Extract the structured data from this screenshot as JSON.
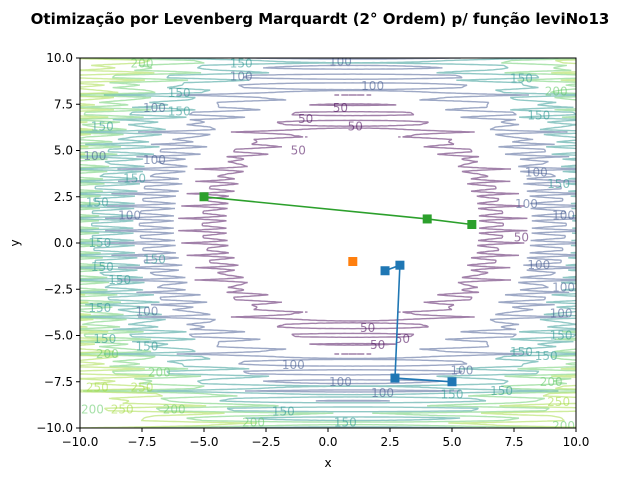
{
  "chart_data": {
    "type": "contour+line",
    "title": "Otimização por Levenberg Marquardt (2° Ordem) p/ função leviNo13",
    "xlabel": "x",
    "ylabel": "y",
    "xlim": [
      -10,
      10
    ],
    "ylim": [
      -10,
      10
    ],
    "xticks": [
      -10.0,
      -7.5,
      -5.0,
      -2.5,
      0.0,
      2.5,
      5.0,
      7.5,
      10.0
    ],
    "xtick_labels": [
      "−10.0",
      "−7.5",
      "−5.0",
      "−2.5",
      "0.0",
      "2.5",
      "5.0",
      "7.5",
      "10.0"
    ],
    "yticks": [
      -10.0,
      -7.5,
      -5.0,
      -2.5,
      0.0,
      2.5,
      5.0,
      7.5,
      10.0
    ],
    "ytick_labels": [
      "−10.0",
      "−7.5",
      "−5.0",
      "−2.5",
      "0.0",
      "2.5",
      "5.0",
      "7.5",
      "10.0"
    ],
    "grid": false,
    "contour": {
      "colormap": "viridis",
      "alpha": 0.5,
      "levels": [
        50,
        100,
        150,
        200,
        250
      ],
      "level_colors": [
        "#440154",
        "#3b528b",
        "#21918c",
        "#5ec962",
        "#a0da39"
      ],
      "labels": [
        {
          "x": 0.5,
          "y": 9.8,
          "text": "100"
        },
        {
          "x": -3.5,
          "y": 9.7,
          "text": "150"
        },
        {
          "x": -7.5,
          "y": 9.7,
          "text": "200"
        },
        {
          "x": -3.5,
          "y": 9.0,
          "text": "100"
        },
        {
          "x": 1.8,
          "y": 8.5,
          "text": "100"
        },
        {
          "x": 0.5,
          "y": 7.3,
          "text": "50"
        },
        {
          "x": -0.9,
          "y": 6.7,
          "text": "50"
        },
        {
          "x": 1.1,
          "y": 6.3,
          "text": "50"
        },
        {
          "x": 7.8,
          "y": 8.9,
          "text": "150"
        },
        {
          "x": 9.2,
          "y": 8.2,
          "text": "200"
        },
        {
          "x": 8.5,
          "y": 6.9,
          "text": "150"
        },
        {
          "x": -6.0,
          "y": 8.1,
          "text": "150"
        },
        {
          "x": -7.0,
          "y": 7.3,
          "text": "100"
        },
        {
          "x": -9.1,
          "y": 6.3,
          "text": "150"
        },
        {
          "x": -9.4,
          "y": 4.7,
          "text": "100"
        },
        {
          "x": -7.0,
          "y": 4.5,
          "text": "100"
        },
        {
          "x": -7.8,
          "y": 3.5,
          "text": "150"
        },
        {
          "x": -9.3,
          "y": 2.2,
          "text": "150"
        },
        {
          "x": -8.0,
          "y": 1.5,
          "text": "100"
        },
        {
          "x": -9.2,
          "y": 0.0,
          "text": "150"
        },
        {
          "x": -9.1,
          "y": -1.3,
          "text": "150"
        },
        {
          "x": -7.0,
          "y": -0.9,
          "text": "150"
        },
        {
          "x": -8.4,
          "y": -2.0,
          "text": "150"
        },
        {
          "x": -9.2,
          "y": -3.5,
          "text": "150"
        },
        {
          "x": -7.3,
          "y": -3.7,
          "text": "100"
        },
        {
          "x": -9.0,
          "y": -5.2,
          "text": "150"
        },
        {
          "x": -7.3,
          "y": -5.6,
          "text": "150"
        },
        {
          "x": -8.9,
          "y": -6.0,
          "text": "200"
        },
        {
          "x": -6.8,
          "y": -7.0,
          "text": "200"
        },
        {
          "x": -9.3,
          "y": -7.8,
          "text": "250"
        },
        {
          "x": -7.5,
          "y": -7.8,
          "text": "250"
        },
        {
          "x": -6.2,
          "y": -9.0,
          "text": "200"
        },
        {
          "x": -8.3,
          "y": -9.0,
          "text": "250"
        },
        {
          "x": -9.5,
          "y": -9.0,
          "text": "200"
        },
        {
          "x": 8.4,
          "y": 3.8,
          "text": "100"
        },
        {
          "x": 9.3,
          "y": 3.2,
          "text": "150"
        },
        {
          "x": 9.5,
          "y": 1.5,
          "text": "100"
        },
        {
          "x": 8.0,
          "y": 2.1,
          "text": "100"
        },
        {
          "x": 7.8,
          "y": 0.3,
          "text": "50"
        },
        {
          "x": 8.5,
          "y": -1.2,
          "text": "100"
        },
        {
          "x": 9.5,
          "y": -2.4,
          "text": "100"
        },
        {
          "x": 9.4,
          "y": -3.8,
          "text": "100"
        },
        {
          "x": 9.4,
          "y": -5.0,
          "text": "150"
        },
        {
          "x": 7.8,
          "y": -5.9,
          "text": "150"
        },
        {
          "x": 8.8,
          "y": -6.1,
          "text": "150"
        },
        {
          "x": 9.0,
          "y": -7.5,
          "text": "200"
        },
        {
          "x": 7.0,
          "y": -8.0,
          "text": "150"
        },
        {
          "x": 9.3,
          "y": -8.6,
          "text": "250"
        },
        {
          "x": 9.5,
          "y": -9.9,
          "text": "200"
        },
        {
          "x": 1.6,
          "y": -4.6,
          "text": "50"
        },
        {
          "x": 3.0,
          "y": -5.2,
          "text": "50"
        },
        {
          "x": 2.0,
          "y": -5.5,
          "text": "50"
        },
        {
          "x": -1.4,
          "y": -6.6,
          "text": "100"
        },
        {
          "x": 0.5,
          "y": -7.5,
          "text": "100"
        },
        {
          "x": 2.2,
          "y": -8.1,
          "text": "100"
        },
        {
          "x": 5.4,
          "y": -6.9,
          "text": "100"
        },
        {
          "x": 5.0,
          "y": -8.2,
          "text": "150"
        },
        {
          "x": -1.8,
          "y": -9.1,
          "text": "150"
        },
        {
          "x": 0.7,
          "y": -9.7,
          "text": "150"
        },
        {
          "x": -3.0,
          "y": -9.7,
          "text": "200"
        },
        {
          "x": -6.0,
          "y": 7.1,
          "text": "150"
        },
        {
          "x": -1.2,
          "y": 5.0,
          "text": "50"
        }
      ]
    },
    "series": [
      {
        "color": "#1f77b4",
        "marker": "s",
        "x": [
          5.0,
          2.7,
          2.9,
          2.3
        ],
        "y": [
          -7.5,
          -7.3,
          -1.2,
          -1.5
        ]
      },
      {
        "color": "#ff7f0e",
        "marker": "s",
        "x": [
          1.0
        ],
        "y": [
          -1.0
        ]
      },
      {
        "color": "#2ca02c",
        "marker": "s",
        "x": [
          5.8,
          4.0,
          -5.0
        ],
        "y": [
          1.0,
          1.3,
          2.5
        ]
      }
    ]
  }
}
